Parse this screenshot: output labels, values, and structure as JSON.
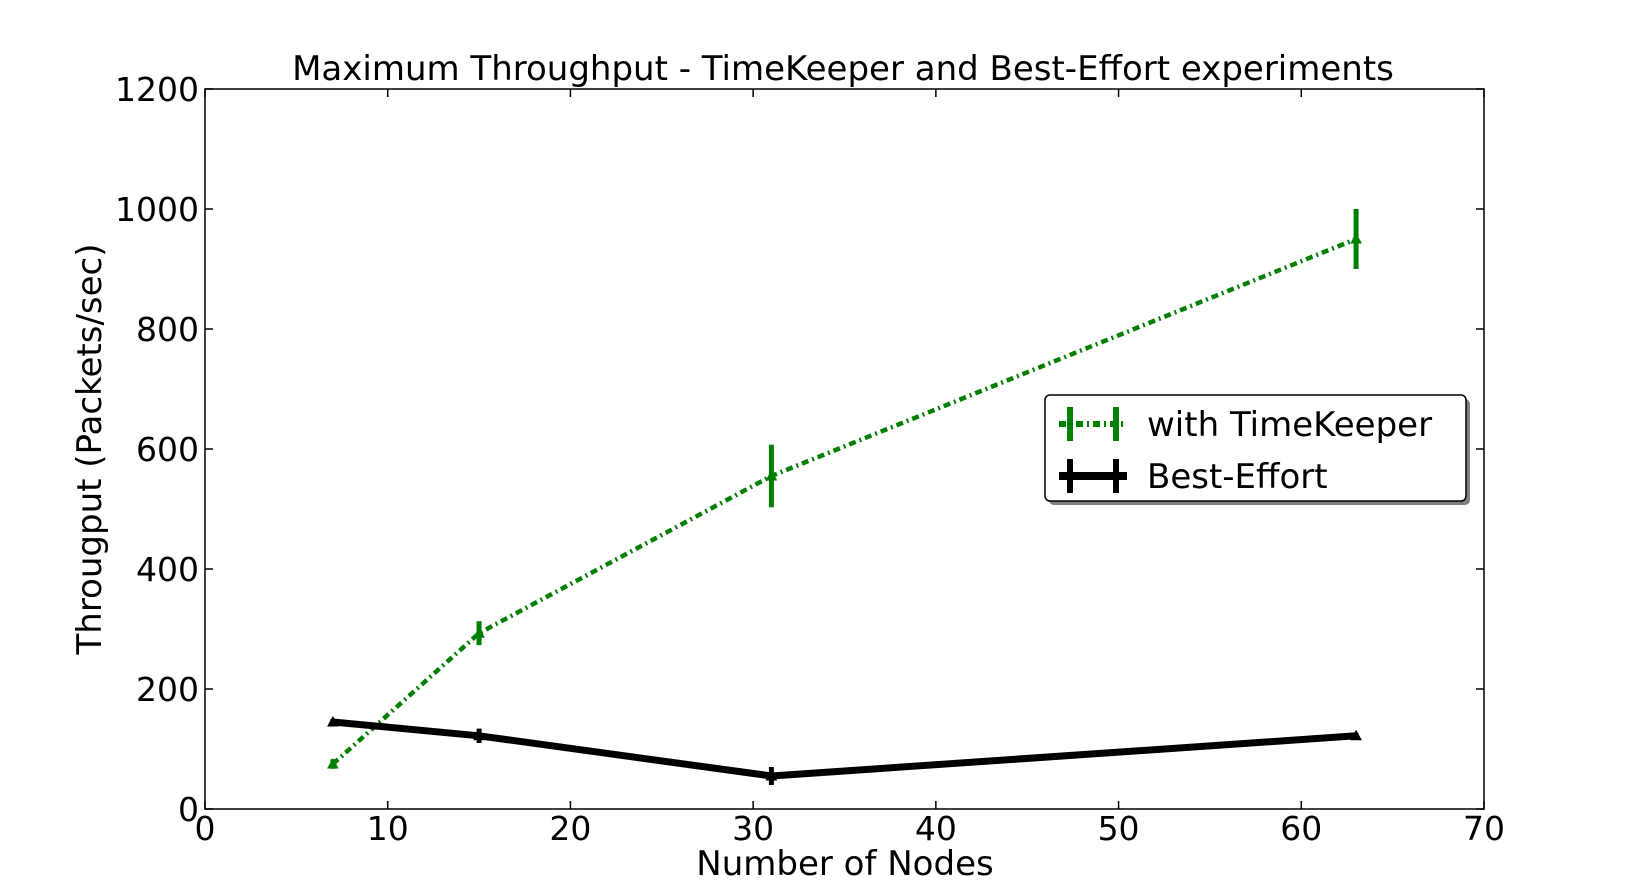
{
  "chart_data": {
    "type": "line",
    "title": "Maximum Throughput - TimeKeeper and Best-Effort experiments",
    "xlabel": "Number of Nodes",
    "ylabel": "Througput (Packets/sec)",
    "xlim": [
      0,
      70
    ],
    "ylim": [
      0,
      1200
    ],
    "xticks": [
      0,
      10,
      20,
      30,
      40,
      50,
      60,
      70
    ],
    "yticks": [
      0,
      200,
      400,
      600,
      800,
      1000,
      1200
    ],
    "grid": false,
    "legend_position": "right",
    "series": [
      {
        "name": "with TimeKeeper",
        "color": "#007f00",
        "line_style": "dashdot",
        "x": [
          7,
          15,
          31,
          63
        ],
        "y": [
          75,
          293,
          555,
          950
        ],
        "err": [
          8,
          20,
          52,
          50
        ]
      },
      {
        "name": "Best-Effort",
        "color": "#000000",
        "line_style": "solid",
        "x": [
          7,
          15,
          31,
          63
        ],
        "y": [
          145,
          122,
          55,
          122
        ],
        "err": [
          5,
          12,
          15,
          5
        ]
      }
    ]
  }
}
